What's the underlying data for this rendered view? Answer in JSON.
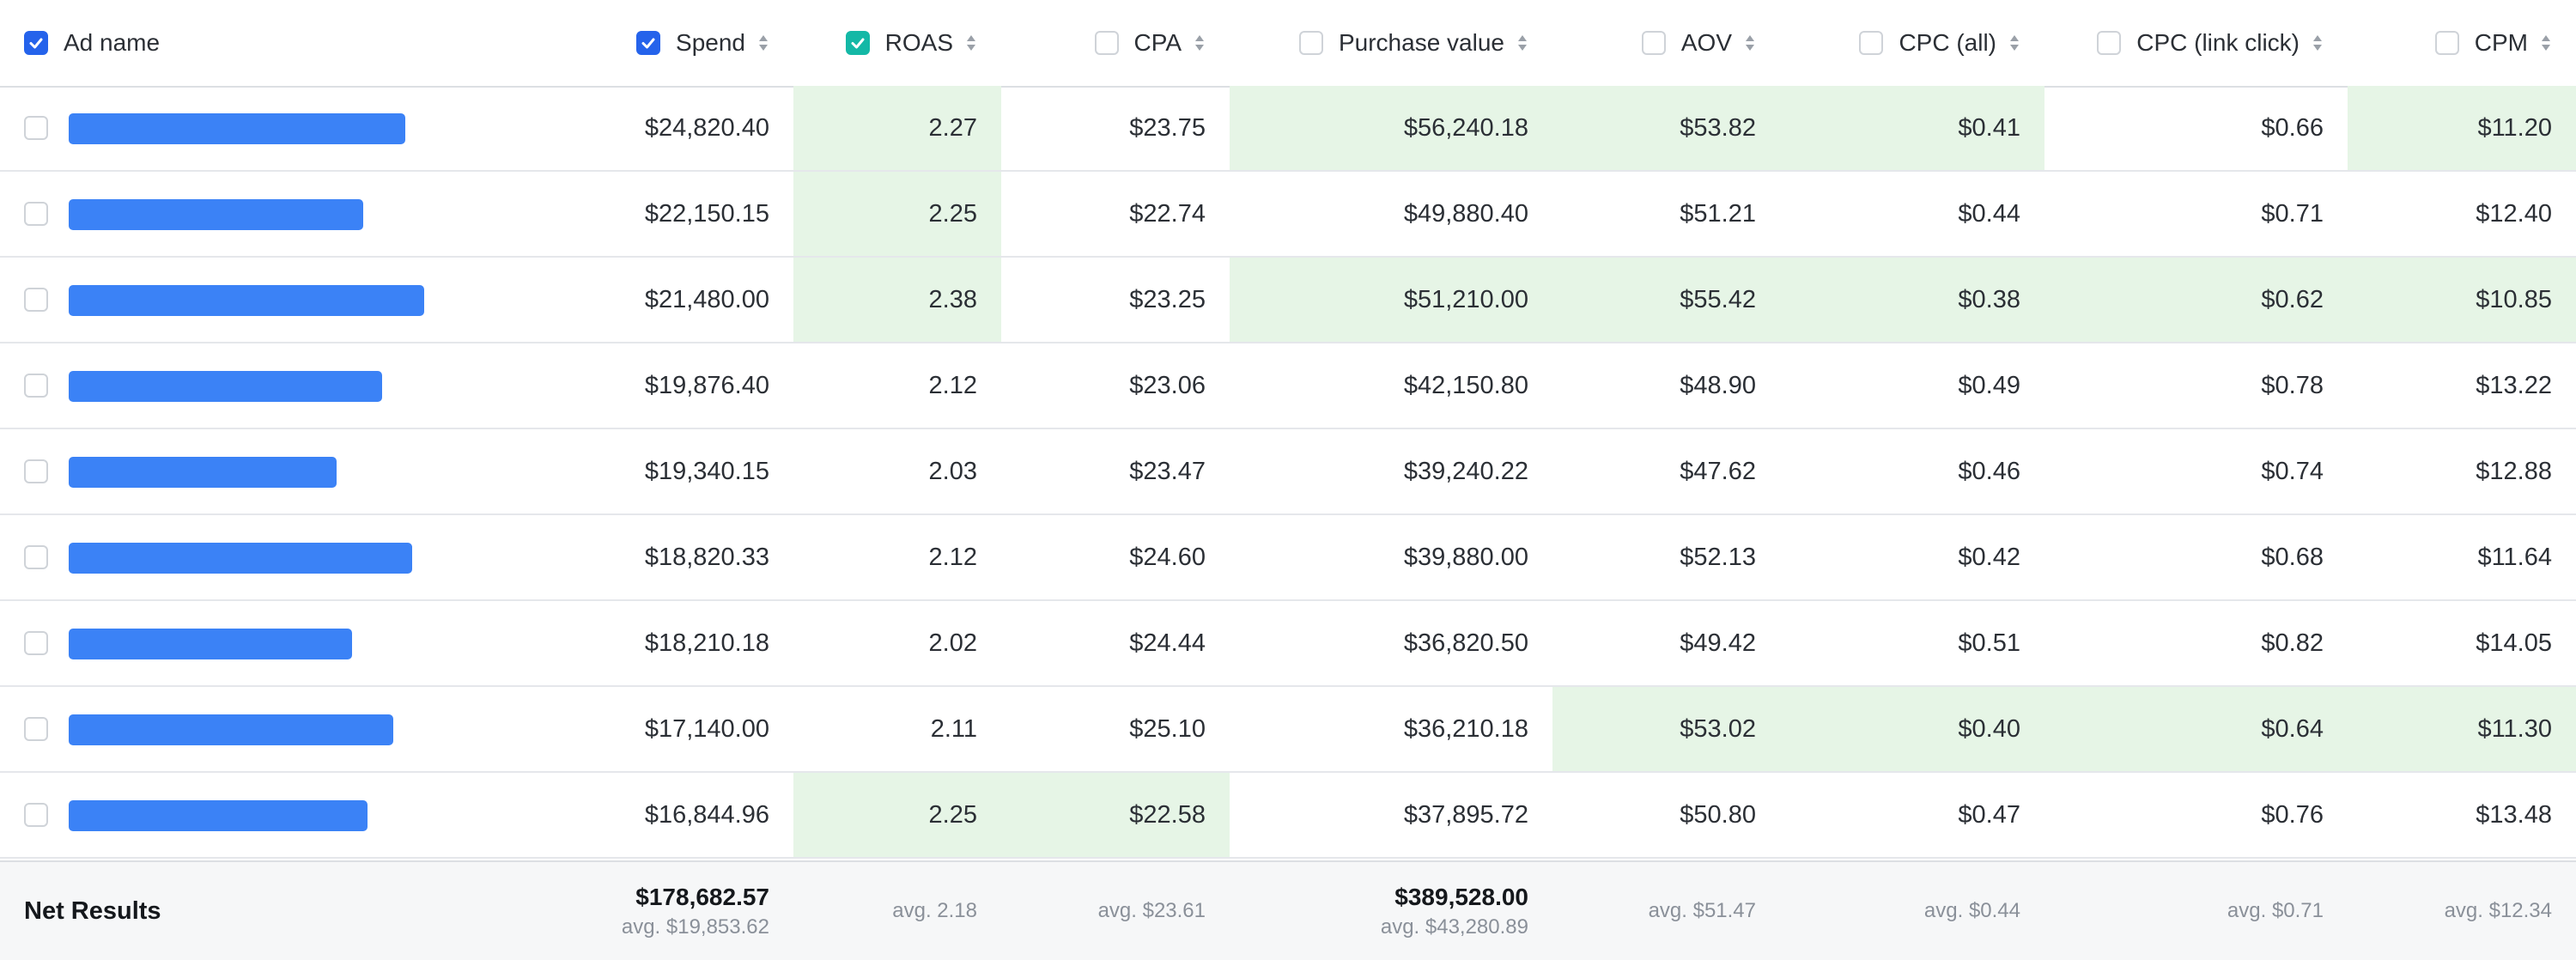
{
  "columns": [
    {
      "key": "ad_name",
      "label": "Ad name",
      "checkbox": "checked-blue",
      "sortable": false
    },
    {
      "key": "spend",
      "label": "Spend",
      "checkbox": "checked-blue",
      "sortable": true
    },
    {
      "key": "roas",
      "label": "ROAS",
      "checkbox": "checked-teal",
      "sortable": true
    },
    {
      "key": "cpa",
      "label": "CPA",
      "checkbox": "unchecked",
      "sortable": true
    },
    {
      "key": "purchase_value",
      "label": "Purchase value",
      "checkbox": "unchecked",
      "sortable": true
    },
    {
      "key": "aov",
      "label": "AOV",
      "checkbox": "unchecked",
      "sortable": true
    },
    {
      "key": "cpc_all",
      "label": "CPC (all)",
      "checkbox": "unchecked",
      "sortable": true
    },
    {
      "key": "cpc_link",
      "label": "CPC (link click)",
      "checkbox": "unchecked",
      "sortable": true
    },
    {
      "key": "cpm",
      "label": "CPM",
      "checkbox": "unchecked",
      "sortable": true
    }
  ],
  "rows": [
    {
      "name_bar_fraction": 0.89,
      "cells": [
        "$24,820.40",
        "2.27",
        "$23.75",
        "$56,240.18",
        "$53.82",
        "$0.41",
        "$0.66",
        "$11.20"
      ],
      "highlighted": [
        false,
        true,
        false,
        true,
        true,
        true,
        false,
        true
      ]
    },
    {
      "name_bar_fraction": 0.78,
      "cells": [
        "$22,150.15",
        "2.25",
        "$22.74",
        "$49,880.40",
        "$51.21",
        "$0.44",
        "$0.71",
        "$12.40"
      ],
      "highlighted": [
        false,
        true,
        false,
        false,
        false,
        false,
        false,
        false
      ]
    },
    {
      "name_bar_fraction": 0.94,
      "cells": [
        "$21,480.00",
        "2.38",
        "$23.25",
        "$51,210.00",
        "$55.42",
        "$0.38",
        "$0.62",
        "$10.85"
      ],
      "highlighted": [
        false,
        true,
        false,
        true,
        true,
        true,
        true,
        true
      ]
    },
    {
      "name_bar_fraction": 0.83,
      "cells": [
        "$19,876.40",
        "2.12",
        "$23.06",
        "$42,150.80",
        "$48.90",
        "$0.49",
        "$0.78",
        "$13.22"
      ],
      "highlighted": [
        false,
        false,
        false,
        false,
        false,
        false,
        false,
        false
      ]
    },
    {
      "name_bar_fraction": 0.71,
      "cells": [
        "$19,340.15",
        "2.03",
        "$23.47",
        "$39,240.22",
        "$47.62",
        "$0.46",
        "$0.74",
        "$12.88"
      ],
      "highlighted": [
        false,
        false,
        false,
        false,
        false,
        false,
        false,
        false
      ]
    },
    {
      "name_bar_fraction": 0.91,
      "cells": [
        "$18,820.33",
        "2.12",
        "$24.60",
        "$39,880.00",
        "$52.13",
        "$0.42",
        "$0.68",
        "$11.64"
      ],
      "highlighted": [
        false,
        false,
        false,
        false,
        false,
        false,
        false,
        false
      ]
    },
    {
      "name_bar_fraction": 0.75,
      "cells": [
        "$18,210.18",
        "2.02",
        "$24.44",
        "$36,820.50",
        "$49.42",
        "$0.51",
        "$0.82",
        "$14.05"
      ],
      "highlighted": [
        false,
        false,
        false,
        false,
        false,
        false,
        false,
        false
      ]
    },
    {
      "name_bar_fraction": 0.86,
      "cells": [
        "$17,140.00",
        "2.11",
        "$25.10",
        "$36,210.18",
        "$53.02",
        "$0.40",
        "$0.64",
        "$11.30"
      ],
      "highlighted": [
        false,
        false,
        false,
        false,
        true,
        true,
        true,
        true
      ]
    },
    {
      "name_bar_fraction": 0.79,
      "cells": [
        "$16,844.96",
        "2.25",
        "$22.58",
        "$37,895.72",
        "$50.80",
        "$0.47",
        "$0.76",
        "$13.48"
      ],
      "highlighted": [
        false,
        true,
        true,
        false,
        false,
        false,
        false,
        false
      ]
    }
  ],
  "footer": {
    "label": "Net Results",
    "cells": [
      {
        "total": "$178,682.57",
        "avg": "avg. $19,853.62"
      },
      {
        "total": "",
        "avg": "avg. 2.18"
      },
      {
        "total": "",
        "avg": "avg. $23.61"
      },
      {
        "total": "$389,528.00",
        "avg": "avg. $43,280.89"
      },
      {
        "total": "",
        "avg": "avg. $51.47"
      },
      {
        "total": "",
        "avg": "avg. $0.44"
      },
      {
        "total": "",
        "avg": "avg. $0.71"
      },
      {
        "total": "",
        "avg": "avg. $12.34"
      }
    ]
  },
  "colors": {
    "checkbox_blue": "#2563eb",
    "checkbox_teal": "#14b8a6",
    "highlight_green": "#e6f5e6",
    "name_bar_blue": "#3b82f6"
  },
  "icons": {
    "sort": "sort-updown-icon",
    "check": "check-icon"
  }
}
